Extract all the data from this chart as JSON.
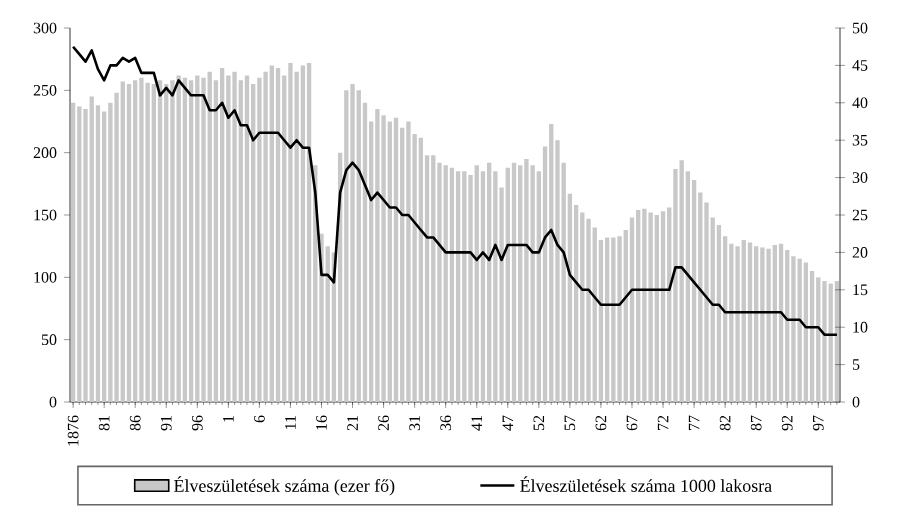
{
  "chart_data": {
    "type": "bar",
    "categories": [
      "1876",
      null,
      null,
      null,
      null,
      "81",
      null,
      null,
      null,
      null,
      "86",
      null,
      null,
      null,
      null,
      "91",
      null,
      null,
      null,
      null,
      "96",
      null,
      null,
      null,
      null,
      "1",
      null,
      null,
      null,
      null,
      "6",
      null,
      null,
      null,
      null,
      "11",
      null,
      null,
      null,
      null,
      "16",
      null,
      null,
      null,
      null,
      "21",
      null,
      null,
      null,
      null,
      "26",
      null,
      null,
      null,
      null,
      "31",
      null,
      null,
      null,
      null,
      "36",
      null,
      null,
      null,
      null,
      "41",
      null,
      null,
      null,
      null,
      "47",
      null,
      null,
      null,
      null,
      "52",
      null,
      null,
      null,
      null,
      "57",
      null,
      null,
      null,
      null,
      "62",
      null,
      null,
      null,
      null,
      "67",
      null,
      null,
      null,
      null,
      "72",
      null,
      null,
      null,
      null,
      "77",
      null,
      null,
      null,
      null,
      "82",
      null,
      null,
      null,
      null,
      "87",
      null,
      null,
      null,
      null,
      "92",
      null,
      null,
      null,
      null,
      "97",
      null,
      null,
      null
    ],
    "series": [
      {
        "name": "Élveszületések száma (ezer fő)",
        "color": "#c8c8c8",
        "values": [
          240,
          237,
          235,
          245,
          238,
          233,
          240,
          248,
          257,
          255,
          258,
          260,
          256,
          255,
          258,
          255,
          258,
          262,
          260,
          258,
          262,
          260,
          265,
          258,
          268,
          262,
          265,
          258,
          262,
          255,
          260,
          265,
          270,
          268,
          262,
          272,
          265,
          270,
          272,
          190,
          135,
          125,
          120,
          200,
          250,
          255,
          250,
          240,
          225,
          235,
          230,
          225,
          228,
          220,
          225,
          215,
          212,
          198,
          198,
          192,
          190,
          188,
          185,
          185,
          182,
          190,
          185,
          192,
          185,
          172,
          188,
          192,
          190,
          195,
          190,
          185,
          205,
          223,
          210,
          192,
          167,
          158,
          152,
          147,
          140,
          130,
          132,
          132,
          133,
          138,
          148,
          154,
          155,
          152,
          150,
          153,
          156,
          187,
          194,
          185,
          178,
          168,
          160,
          148,
          142,
          133,
          127,
          125,
          130,
          128,
          125,
          124,
          123,
          126,
          127,
          122,
          117,
          115,
          112,
          105,
          100,
          97,
          95,
          97
        ]
      },
      {
        "name": "Élveszületések száma 1000 lakosra",
        "type": "line",
        "axis": "y2",
        "color": "#000000",
        "values": [
          47.5,
          46.5,
          45.5,
          47,
          44.5,
          43,
          45,
          45,
          46,
          45.5,
          46,
          44,
          44,
          44,
          41,
          42,
          41,
          43,
          42,
          41,
          41,
          41,
          39,
          39,
          40,
          38,
          39,
          37,
          37,
          35,
          36,
          36,
          36,
          36,
          35,
          34,
          35,
          34,
          34,
          28,
          17,
          17,
          16,
          28,
          31,
          32,
          31,
          29,
          27,
          28,
          27,
          26,
          26,
          25,
          25,
          24,
          23,
          22,
          22,
          21,
          20,
          20,
          20,
          20,
          20,
          19,
          20,
          19,
          21,
          19,
          21,
          21,
          21,
          21,
          20,
          20,
          22,
          23,
          21,
          20,
          17,
          16,
          15,
          15,
          14,
          13,
          13,
          13,
          13,
          14,
          15,
          15,
          15,
          15,
          15,
          15,
          15,
          18,
          18,
          17,
          16,
          15,
          14,
          13,
          13,
          12,
          12,
          12,
          12,
          12,
          12,
          12,
          12,
          12,
          12,
          11,
          11,
          11,
          10,
          10,
          10,
          9,
          9,
          9
        ]
      }
    ],
    "ylim": [
      0,
      300
    ],
    "yticks": [
      0,
      50,
      100,
      150,
      200,
      250,
      300
    ],
    "y2lim": [
      0,
      50
    ],
    "y2ticks": [
      0,
      5,
      10,
      15,
      20,
      25,
      30,
      35,
      40,
      45,
      50
    ],
    "legend": "bottom"
  }
}
